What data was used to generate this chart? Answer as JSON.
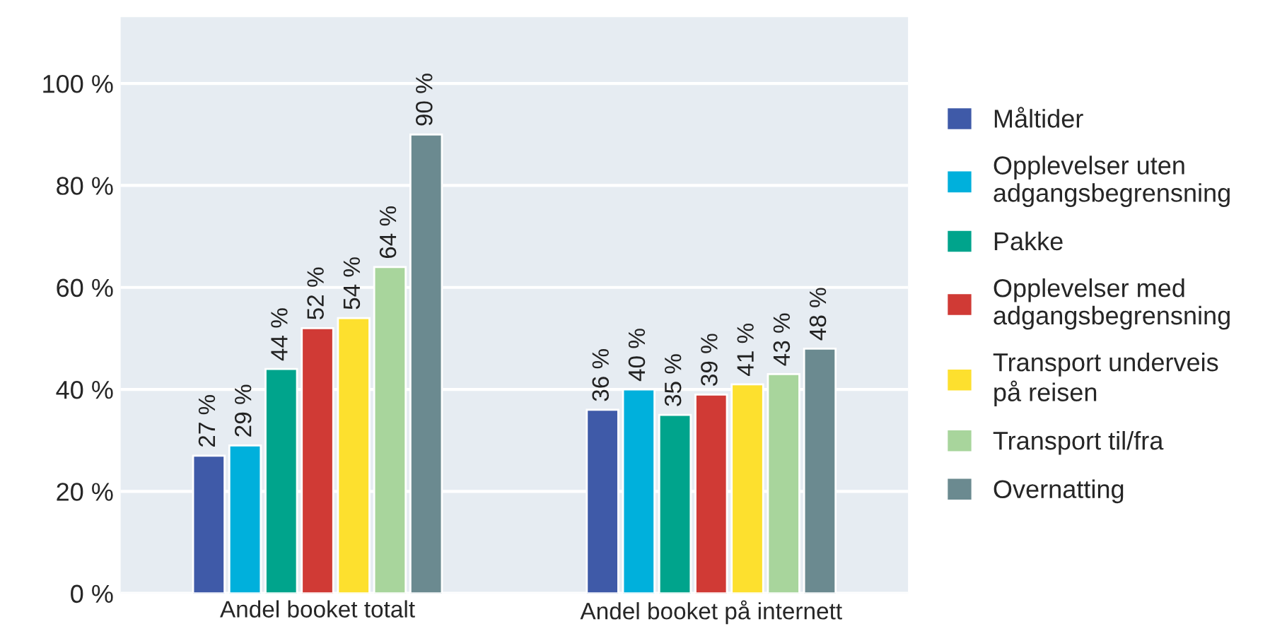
{
  "chart_data": {
    "type": "bar",
    "categories": [
      "Andel booket totalt",
      "Andel booket på internett"
    ],
    "series": [
      {
        "name": "Måltider",
        "color": "#3f5aa8",
        "values": [
          27,
          36
        ]
      },
      {
        "name": "Opplevelser uten\nadgangsbegrensning",
        "color": "#00b0dc",
        "values": [
          29,
          40
        ]
      },
      {
        "name": "Pakke",
        "color": "#00a48c",
        "values": [
          44,
          35
        ]
      },
      {
        "name": "Opplevelser med\nadgangsbegrensning",
        "color": "#d03a35",
        "values": [
          52,
          39
        ]
      },
      {
        "name": "Transport underveis\npå reisen",
        "color": "#fde02e",
        "values": [
          54,
          41
        ]
      },
      {
        "name": "Transport til/fra",
        "color": "#a8d59c",
        "values": [
          64,
          43
        ]
      },
      {
        "name": "Overnatting",
        "color": "#6b8a90",
        "values": [
          90,
          48
        ]
      }
    ],
    "value_labels": [
      [
        "27 %",
        "36 %"
      ],
      [
        "29 %",
        "40 %"
      ],
      [
        "44 %",
        "35 %"
      ],
      [
        "52 %",
        "39 %"
      ],
      [
        "54 %",
        "41 %"
      ],
      [
        "64 %",
        "43 %"
      ],
      [
        "90 %",
        "48 %"
      ]
    ],
    "ylim": [
      0,
      113
    ],
    "yticks": [
      {
        "value": 0,
        "label": "0 %"
      },
      {
        "value": 20,
        "label": "20 %"
      },
      {
        "value": 40,
        "label": "40 %"
      },
      {
        "value": 60,
        "label": "60 %"
      },
      {
        "value": 80,
        "label": "80 %"
      },
      {
        "value": 100,
        "label": "100 %"
      }
    ],
    "grid": "y",
    "legend": "right"
  }
}
